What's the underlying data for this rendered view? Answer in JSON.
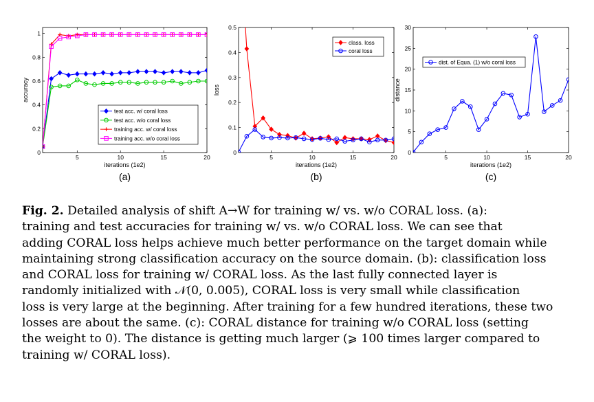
{
  "chart_data": [
    {
      "type": "line",
      "panel_label": "(a)",
      "xlabel": "iterations (1e2)",
      "ylabel": "accuracy",
      "xlim": [
        1,
        20
      ],
      "ylim": [
        0,
        1.05
      ],
      "xticks": [
        5,
        10,
        15,
        20
      ],
      "xtick_labels": [
        "5",
        "10",
        "15",
        "20"
      ],
      "yticks": [
        0,
        0.2,
        0.4,
        0.6,
        0.8,
        1
      ],
      "ytick_labels": [
        "0",
        "0.2",
        "0.4",
        "0.6",
        "0.8",
        "1"
      ],
      "grid": false,
      "legend_position": "lower-right",
      "x": [
        1,
        2,
        3,
        4,
        5,
        6,
        7,
        8,
        9,
        10,
        11,
        12,
        13,
        14,
        15,
        16,
        17,
        18,
        19,
        20
      ],
      "series": [
        {
          "name": "test acc. w/ coral loss",
          "color": "#0000ff",
          "marker": "diamond",
          "values": [
            0.05,
            0.62,
            0.67,
            0.65,
            0.66,
            0.66,
            0.66,
            0.67,
            0.66,
            0.67,
            0.67,
            0.68,
            0.68,
            0.68,
            0.67,
            0.68,
            0.68,
            0.67,
            0.67,
            0.69
          ]
        },
        {
          "name": "test acc. w/o coral loss",
          "color": "#00cc00",
          "marker": "circle",
          "values": [
            0.05,
            0.55,
            0.56,
            0.56,
            0.61,
            0.58,
            0.57,
            0.58,
            0.58,
            0.59,
            0.59,
            0.58,
            0.59,
            0.59,
            0.59,
            0.6,
            0.58,
            0.59,
            0.6,
            0.6
          ]
        },
        {
          "name": "training acc. w/ coral loss",
          "color": "#ff0000",
          "marker": "plus",
          "values": [
            0.05,
            0.91,
            0.99,
            0.98,
            0.99,
            0.99,
            0.99,
            0.99,
            0.99,
            0.99,
            0.99,
            0.99,
            0.99,
            0.99,
            0.99,
            0.99,
            0.99,
            0.99,
            0.99,
            0.99
          ]
        },
        {
          "name": "training acc. w/o coral loss",
          "color": "#ff00ff",
          "marker": "square",
          "values": [
            0.05,
            0.89,
            0.96,
            0.97,
            0.98,
            0.99,
            0.99,
            0.99,
            0.99,
            0.99,
            0.99,
            0.99,
            0.99,
            0.99,
            0.99,
            0.99,
            0.99,
            0.99,
            0.99,
            0.99
          ]
        }
      ]
    },
    {
      "type": "line",
      "panel_label": "(b)",
      "xlabel": "iterations (1e2)",
      "ylabel": "loss",
      "xlim": [
        1,
        20
      ],
      "ylim": [
        0,
        0.5
      ],
      "xticks": [
        5,
        10,
        15,
        20
      ],
      "xtick_labels": [
        "5",
        "10",
        "15",
        "20"
      ],
      "yticks": [
        0,
        0.1,
        0.2,
        0.3,
        0.4,
        0.5
      ],
      "ytick_labels": [
        "0",
        "0.1",
        "0.2",
        "0.3",
        "0.4",
        "0.5"
      ],
      "grid": false,
      "legend_position": "top-right",
      "x": [
        1,
        2,
        3,
        4,
        5,
        6,
        7,
        8,
        9,
        10,
        11,
        12,
        13,
        14,
        15,
        16,
        17,
        18,
        19,
        20
      ],
      "series": [
        {
          "name": "class. loss",
          "color": "#ff0000",
          "marker": "diamond",
          "values": [
            0.95,
            0.415,
            0.105,
            0.138,
            0.093,
            0.072,
            0.068,
            0.058,
            0.077,
            0.055,
            0.058,
            0.063,
            0.04,
            0.06,
            0.055,
            0.055,
            0.052,
            0.066,
            0.048,
            0.04
          ]
        },
        {
          "name": "coral loss",
          "color": "#0000ff",
          "marker": "circle",
          "values": [
            0.002,
            0.065,
            0.092,
            0.062,
            0.058,
            0.06,
            0.058,
            0.06,
            0.055,
            0.052,
            0.057,
            0.052,
            0.055,
            0.045,
            0.05,
            0.055,
            0.042,
            0.05,
            0.05,
            0.055
          ]
        }
      ]
    },
    {
      "type": "line",
      "panel_label": "(c)",
      "xlabel": "iterations (1e2)",
      "ylabel": "distance",
      "xlim": [
        1,
        20
      ],
      "ylim": [
        0,
        30
      ],
      "xticks": [
        5,
        10,
        15,
        20
      ],
      "xtick_labels": [
        "5",
        "10",
        "15",
        "20"
      ],
      "yticks": [
        0,
        5,
        10,
        15,
        20,
        25,
        30
      ],
      "ytick_labels": [
        "0",
        "5",
        "10",
        "15",
        "20",
        "25",
        "30"
      ],
      "grid": false,
      "legend_position": "top-right",
      "x": [
        1,
        2,
        3,
        4,
        5,
        6,
        7,
        8,
        9,
        10,
        11,
        12,
        13,
        14,
        15,
        16,
        17,
        18,
        19,
        20
      ],
      "series": [
        {
          "name": "dist. of Equa. (1) w/o coral loss",
          "color": "#0000ff",
          "marker": "circle",
          "values": [
            0.1,
            2.5,
            4.5,
            5.5,
            6.0,
            10.5,
            12.3,
            11.0,
            5.5,
            8.0,
            11.7,
            14.2,
            13.8,
            8.5,
            9.2,
            27.8,
            9.8,
            11.3,
            12.5,
            17.5
          ]
        }
      ]
    }
  ],
  "caption": {
    "label": "Fig. 2.",
    "lines": [
      " Detailed analysis of shift A→W for training w/ vs. w/o CORAL loss. (a):",
      "training and test accuracies for training w/ vs. w/o CORAL loss. We can see that",
      "adding CORAL loss helps achieve much better performance on the target domain while",
      "maintaining strong classification accuracy on the source domain. (b): classification loss",
      "and CORAL loss for training w/ CORAL loss. As the last fully connected layer is",
      "randomly initialized with 𝒩(0, 0.005), CORAL loss is very small while classification",
      "loss is very large at the beginning. After training for a few hundred iterations, these two",
      "losses are about the same. (c): CORAL distance for training w/o CORAL loss (setting",
      "the weight to 0). The distance is getting much larger (⩾ 100 times larger compared to",
      "training w/ CORAL loss)."
    ]
  }
}
